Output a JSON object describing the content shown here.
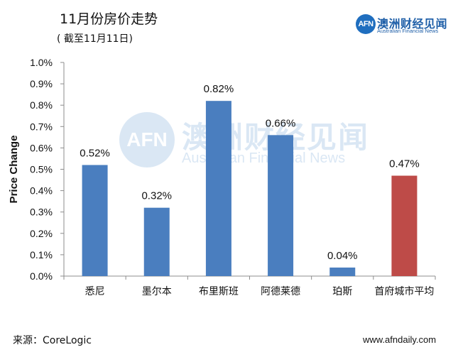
{
  "header": {
    "title": "11月份房价走势",
    "subtitle": "( 截至11月11日)"
  },
  "brand": {
    "badge": "AFN",
    "name_cn": "澳洲财经见闻",
    "name_en": "Australian Financial News"
  },
  "watermark": {
    "badge": "AFN",
    "name_cn": "澳洲财经见闻",
    "name_en": "Australian Financial News"
  },
  "footer": {
    "source": "来源：CoreLogic",
    "url": "www.afndaily.com"
  },
  "chart_data": {
    "type": "bar",
    "title": "",
    "xlabel": "",
    "ylabel": "Price Change",
    "categories": [
      "悉尼",
      "墨尔本",
      "布里斯班",
      "阿德莱德",
      "珀斯",
      "首府城市平均"
    ],
    "values": [
      0.52,
      0.32,
      0.82,
      0.66,
      0.04,
      0.47
    ],
    "value_labels": [
      "0.52%",
      "0.32%",
      "0.82%",
      "0.66%",
      "0.04%",
      "0.47%"
    ],
    "bar_colors": [
      "#4a7ebf",
      "#4a7ebf",
      "#4a7ebf",
      "#4a7ebf",
      "#4a7ebf",
      "#be4b48"
    ],
    "ylim": [
      0,
      1.0
    ],
    "y_ticks": [
      0,
      0.1,
      0.2,
      0.3,
      0.4,
      0.5,
      0.6,
      0.7,
      0.8,
      0.9,
      1.0
    ],
    "y_tick_labels": [
      "0.0%",
      "0.1%",
      "0.2%",
      "0.3%",
      "0.4%",
      "0.5%",
      "0.6%",
      "0.7%",
      "0.8%",
      "0.9%",
      "1.0%"
    ],
    "grid": false,
    "legend": "none"
  }
}
